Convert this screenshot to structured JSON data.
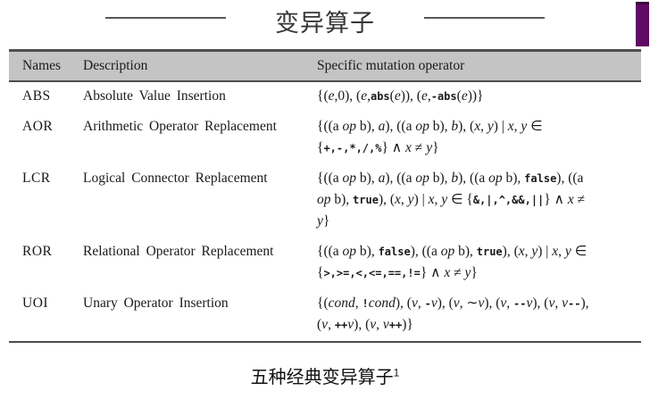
{
  "colors": {
    "accent_purple": "#5f0a64",
    "header_gray": "#c4c4c4",
    "border_dark": "#4d4d4d",
    "rule_gray": "#585858"
  },
  "title": {
    "text": "变异算子"
  },
  "caption": {
    "text": "五种经典变异算子",
    "superscript": "1"
  },
  "table": {
    "headers": [
      "Names",
      "Description",
      "Specific mutation operator"
    ],
    "rows": [
      {
        "name": "ABS",
        "description": "Absolute Value Insertion",
        "operator_lines": [
          [
            [
              "rm",
              "{("
            ],
            [
              "it",
              "e"
            ],
            [
              "rm",
              ",0), ("
            ],
            [
              "it",
              "e"
            ],
            [
              "rm",
              ","
            ],
            [
              "tt",
              "abs"
            ],
            [
              "rm",
              "("
            ],
            [
              "it",
              "e"
            ],
            [
              "rm",
              ")), ("
            ],
            [
              "it",
              "e"
            ],
            [
              "rm",
              ","
            ],
            [
              "tt",
              "-abs"
            ],
            [
              "rm",
              "("
            ],
            [
              "it",
              "e"
            ],
            [
              "rm",
              "))}"
            ]
          ]
        ]
      },
      {
        "name": "AOR",
        "description": "Arithmetic Operator Replacement",
        "operator_lines": [
          [
            [
              "rm",
              "{((a "
            ],
            [
              "it",
              "op"
            ],
            [
              "rm",
              " b), "
            ],
            [
              "it",
              "a"
            ],
            [
              "rm",
              "), ((a "
            ],
            [
              "it",
              "op"
            ],
            [
              "rm",
              " b), "
            ],
            [
              "it",
              "b"
            ],
            [
              "rm",
              "), ("
            ],
            [
              "it",
              "x"
            ],
            [
              "rm",
              ", "
            ],
            [
              "it",
              "y"
            ],
            [
              "rm",
              ")  |  "
            ],
            [
              "it",
              "x"
            ],
            [
              "rm",
              ", "
            ],
            [
              "it",
              "y"
            ],
            [
              "rm",
              "  ∈"
            ]
          ],
          [
            [
              "rm",
              "{"
            ],
            [
              "tt",
              "+,-,*,/,%"
            ],
            [
              "rm",
              "} ∧ "
            ],
            [
              "it",
              "x"
            ],
            [
              "rm",
              " ≠ "
            ],
            [
              "it",
              "y"
            ],
            [
              "rm",
              "}"
            ]
          ]
        ]
      },
      {
        "name": "LCR",
        "description": "Logical Connector Replacement",
        "operator_lines": [
          [
            [
              "rm",
              "{((a "
            ],
            [
              "it",
              "op"
            ],
            [
              "rm",
              " b), "
            ],
            [
              "it",
              "a"
            ],
            [
              "rm",
              "), ((a "
            ],
            [
              "it",
              "op"
            ],
            [
              "rm",
              " b), "
            ],
            [
              "it",
              "b"
            ],
            [
              "rm",
              "), ((a "
            ],
            [
              "it",
              "op"
            ],
            [
              "rm",
              " b), "
            ],
            [
              "tt",
              "false"
            ],
            [
              "rm",
              "), ((a"
            ]
          ],
          [
            [
              "it",
              "op"
            ],
            [
              "rm",
              " b), "
            ],
            [
              "tt",
              "true"
            ],
            [
              "rm",
              "), ("
            ],
            [
              "it",
              "x"
            ],
            [
              "rm",
              ", "
            ],
            [
              "it",
              "y"
            ],
            [
              "rm",
              ") | "
            ],
            [
              "it",
              "x"
            ],
            [
              "rm",
              ", "
            ],
            [
              "it",
              "y"
            ],
            [
              "rm",
              " ∈ {"
            ],
            [
              "tt",
              "&,|,^,&&,||"
            ],
            [
              "rm",
              "} ∧ "
            ],
            [
              "it",
              "x"
            ],
            [
              "rm",
              " ≠"
            ]
          ],
          [
            [
              "it",
              "y"
            ],
            [
              "rm",
              "}"
            ]
          ]
        ]
      },
      {
        "name": "ROR",
        "description": "Relational Operator Replacement",
        "operator_lines": [
          [
            [
              "rm",
              "{((a "
            ],
            [
              "it",
              "op"
            ],
            [
              "rm",
              " b), "
            ],
            [
              "tt",
              "false"
            ],
            [
              "rm",
              "), ((a "
            ],
            [
              "it",
              "op"
            ],
            [
              "rm",
              " b), "
            ],
            [
              "tt",
              "true"
            ],
            [
              "rm",
              "), ("
            ],
            [
              "it",
              "x"
            ],
            [
              "rm",
              ", "
            ],
            [
              "it",
              "y"
            ],
            [
              "rm",
              ") | "
            ],
            [
              "it",
              "x"
            ],
            [
              "rm",
              ", "
            ],
            [
              "it",
              "y"
            ],
            [
              "rm",
              " ∈"
            ]
          ],
          [
            [
              "rm",
              "{"
            ],
            [
              "tt",
              ">,>=,<,<=,==,!="
            ],
            [
              "rm",
              "} ∧ "
            ],
            [
              "it",
              "x"
            ],
            [
              "rm",
              " ≠ "
            ],
            [
              "it",
              "y"
            ],
            [
              "rm",
              "}"
            ]
          ]
        ]
      },
      {
        "name": "UOI",
        "description": "Unary Operator Insertion",
        "operator_lines": [
          [
            [
              "rm",
              "{("
            ],
            [
              "it",
              "cond"
            ],
            [
              "rm",
              ", "
            ],
            [
              "tt",
              "!"
            ],
            [
              "it",
              "cond"
            ],
            [
              "rm",
              "), ("
            ],
            [
              "it",
              "v"
            ],
            [
              "rm",
              ", "
            ],
            [
              "tt",
              "-"
            ],
            [
              "it",
              "v"
            ],
            [
              "rm",
              "), ("
            ],
            [
              "it",
              "v"
            ],
            [
              "rm",
              ", ∼"
            ],
            [
              "it",
              "v"
            ],
            [
              "rm",
              "), ("
            ],
            [
              "it",
              "v"
            ],
            [
              "rm",
              ", "
            ],
            [
              "tt",
              "--"
            ],
            [
              "it",
              "v"
            ],
            [
              "rm",
              "), ("
            ],
            [
              "it",
              "v"
            ],
            [
              "rm",
              ", "
            ],
            [
              "it",
              "v"
            ],
            [
              "tt",
              "--"
            ],
            [
              "rm",
              "),"
            ]
          ],
          [
            [
              "rm",
              "("
            ],
            [
              "it",
              "v"
            ],
            [
              "rm",
              ", "
            ],
            [
              "tt",
              "++"
            ],
            [
              "it",
              "v"
            ],
            [
              "rm",
              "), ("
            ],
            [
              "it",
              "v"
            ],
            [
              "rm",
              ", "
            ],
            [
              "it",
              "v"
            ],
            [
              "tt",
              "++"
            ],
            [
              "rm",
              ")}"
            ]
          ]
        ]
      }
    ]
  }
}
